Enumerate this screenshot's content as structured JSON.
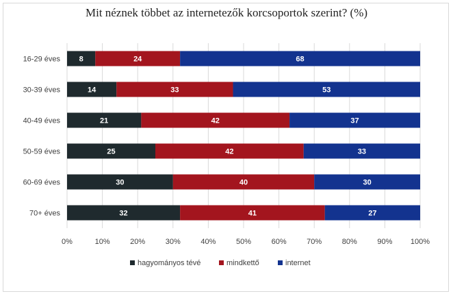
{
  "chart_data": {
    "type": "bar",
    "orientation": "horizontal",
    "stacked": true,
    "title": "Mit néznek többet az internetezők korcsoportok szerint? (%)",
    "categories": [
      "16-29 éves",
      "30-39 éves",
      "40-49 éves",
      "50-59 éves",
      "60-69 éves",
      "70+ éves"
    ],
    "series": [
      {
        "name": "hagyományos tévé",
        "color": "#1f2a2e",
        "values": [
          8,
          14,
          21,
          25,
          30,
          32
        ]
      },
      {
        "name": "mindkettő",
        "color": "#a3151e",
        "values": [
          24,
          33,
          42,
          42,
          40,
          41
        ]
      },
      {
        "name": "internet",
        "color": "#13338f",
        "values": [
          68,
          53,
          37,
          33,
          30,
          27
        ]
      }
    ],
    "xlim": [
      0,
      100
    ],
    "xticks": [
      "0%",
      "10%",
      "20%",
      "30%",
      "40%",
      "50%",
      "60%",
      "70%",
      "80%",
      "90%",
      "100%"
    ],
    "grid": true,
    "legend_position": "bottom"
  }
}
